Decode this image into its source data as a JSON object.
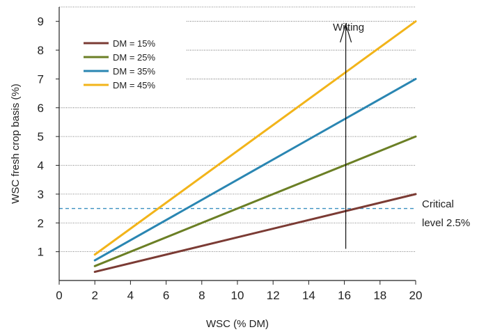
{
  "chart_data": {
    "type": "line",
    "xlabel": "WSC (% DM)",
    "ylabel": "WSC fresh crop basis (%)",
    "xlim": [
      0,
      20
    ],
    "ylim": [
      0,
      9.5
    ],
    "xticks": [
      0,
      2,
      4,
      6,
      8,
      10,
      12,
      14,
      16,
      18,
      20
    ],
    "yticks": [
      1,
      2,
      3,
      4,
      5,
      6,
      7,
      8,
      9
    ],
    "grid": "horizontal-dotted",
    "legend_position": "top-left",
    "series": [
      {
        "name": "DM = 15%",
        "color": "#7b3b34",
        "x": [
          2,
          20
        ],
        "y": [
          0.3,
          3.0
        ]
      },
      {
        "name": "DM = 25%",
        "color": "#6b7f25",
        "x": [
          2,
          20
        ],
        "y": [
          0.5,
          5.0
        ]
      },
      {
        "name": "DM = 35%",
        "color": "#2a86b2",
        "x": [
          2,
          20
        ],
        "y": [
          0.7,
          7.0
        ]
      },
      {
        "name": "DM = 45%",
        "color": "#f2b41a",
        "x": [
          2,
          20
        ],
        "y": [
          0.9,
          9.0
        ]
      }
    ],
    "reference_line": {
      "y": 2.5,
      "color": "#3a8fc0",
      "label_line1": "Critical",
      "label_line2": "level 2.5%"
    },
    "arrow": {
      "x": 16,
      "y_start": 1.1,
      "y_end": 8.9,
      "label": "Wilting"
    }
  }
}
